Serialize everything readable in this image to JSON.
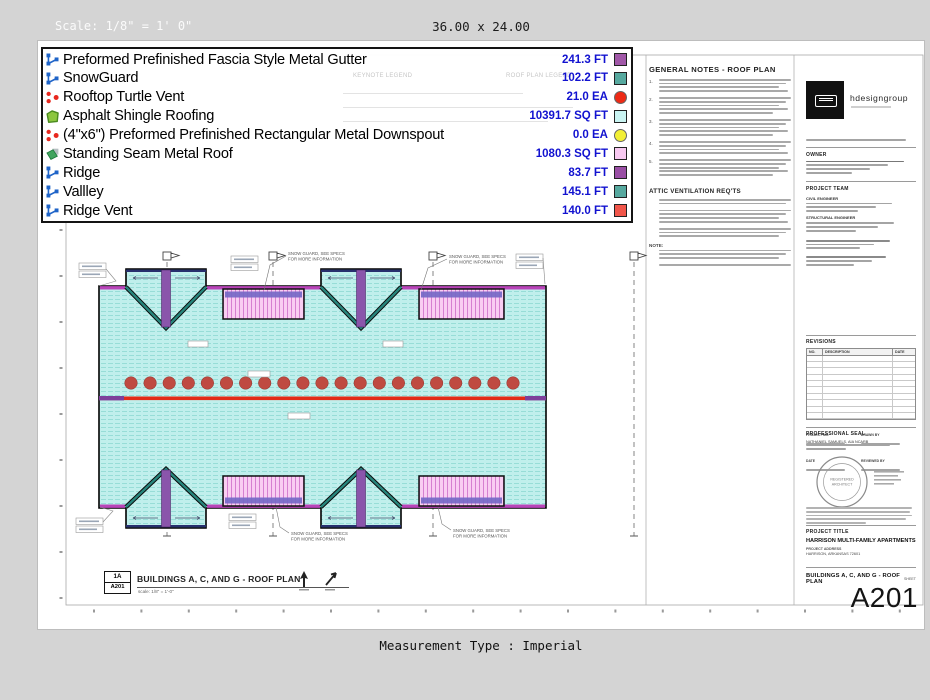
{
  "toolbar": {
    "scale_label": "Scale: 1/8\" = 1' 0\"",
    "sheet_size": "36.00 x 24.00"
  },
  "footer": {
    "measurement_type": "Measurement Type : Imperial"
  },
  "legend": {
    "items": [
      {
        "label": "Preformed Prefinished Fascia Style Metal Gutter",
        "value": "241.3 FT",
        "icon": "line-icon",
        "swatch": "#a158a8",
        "swatch_shape": "square"
      },
      {
        "label": "SnowGuard",
        "value": "102.2 FT",
        "icon": "line-icon",
        "swatch": "#57a99f",
        "swatch_shape": "square"
      },
      {
        "label": "Rooftop Turtle Vent",
        "value": "21.0 EA",
        "icon": "count-icon",
        "swatch": "#ed2a15",
        "swatch_shape": "circle"
      },
      {
        "label": "Asphalt Shingle Roofing",
        "value": "10391.7 SQ FT",
        "icon": "area-icon",
        "swatch": "#c9f4f2",
        "swatch_shape": "square"
      },
      {
        "label": "(4\"x6\") Preformed Prefinished Rectangular Metal Downspout",
        "value": "0.0 EA",
        "icon": "count-icon",
        "swatch": "#f2ef35",
        "swatch_shape": "circle"
      },
      {
        "label": "Standing Seam Metal Roof",
        "value": "1080.3 SQ FT",
        "icon": "surface-icon",
        "swatch": "#f8c9f1",
        "swatch_shape": "square"
      },
      {
        "label": "Ridge",
        "value": "83.7 FT",
        "icon": "line-icon",
        "swatch": "#9a4fa5",
        "swatch_shape": "square"
      },
      {
        "label": "Vallley",
        "value": "145.1 FT",
        "icon": "line-icon",
        "swatch": "#57a99f",
        "swatch_shape": "square"
      },
      {
        "label": "Ridge Vent",
        "value": "140.0 FT",
        "icon": "line-icon",
        "swatch": "#f1564a",
        "swatch_shape": "square"
      }
    ]
  },
  "drawing": {
    "watermarks": [
      "KEYNOTE LEGEND",
      "ROOF PLAN LEGEND"
    ],
    "snow_note_line1": "SNOW GUARD, SEE SPECS",
    "snow_note_line2": "FOR MORE INFORMATION",
    "sheet_callout_ref": "1A",
    "sheet_callout_sheet": "A201",
    "view_title": "BUILDINGS A, C, AND G - ROOF PLAN",
    "view_scale": "scale: 1/8\" = 1'-0\"",
    "vent_count": 21,
    "colors": {
      "roof_fill": "#c0efec",
      "metal_roof_fill": "#f9cdf2",
      "ridge": "#8a55ab",
      "valley": "#27857c",
      "gutter": "#b944b9",
      "ridge_vent": "#e32b18",
      "turtle_vent": "#bf4a41"
    }
  },
  "notes_panel": {
    "general_title": "GENERAL NOTES - ROOF PLAN",
    "note_numbers": [
      "1.",
      "2.",
      "3.",
      "4.",
      "5."
    ],
    "attic_title": "ATTIC VENTILATION REQ'TS",
    "note_label": "NOTE:"
  },
  "title_block": {
    "firm_name": "hdesigngroup",
    "owner_label": "OWNER",
    "project_team_label": "PROJECT TEAM",
    "team_roles": [
      "CIVIL ENGINEER",
      "STRUCTURAL ENGINEER"
    ],
    "revisions_label": "REVISIONS",
    "rev_cols": [
      "NO.",
      "DESCRIPTION",
      "DATE"
    ],
    "project_no_label": "PROJECT NO.",
    "date_label": "DATE",
    "drawn_by_label": "DRAWN BY",
    "reviewed_by_label": "REVIEWED BY",
    "seal_label": "PROFESSIONAL SEAL",
    "architect_name": "NATHANIEL SAMUELS, AIA NCARB",
    "seal_line1": "REGISTERED",
    "seal_line2": "ARCHITECT",
    "project_title_label": "PROJECT TITLE",
    "project_title": "HARRISON MULTI-FAMILY APARTMENTS",
    "project_address_label": "PROJECT ADDRESS",
    "project_address": "HARRISON, ARKANSAS 72601",
    "sheet_title": "BUILDINGS A, C, AND G - ROOF PLAN",
    "sheet_label": "SHEET",
    "sheet_number": "A201"
  }
}
